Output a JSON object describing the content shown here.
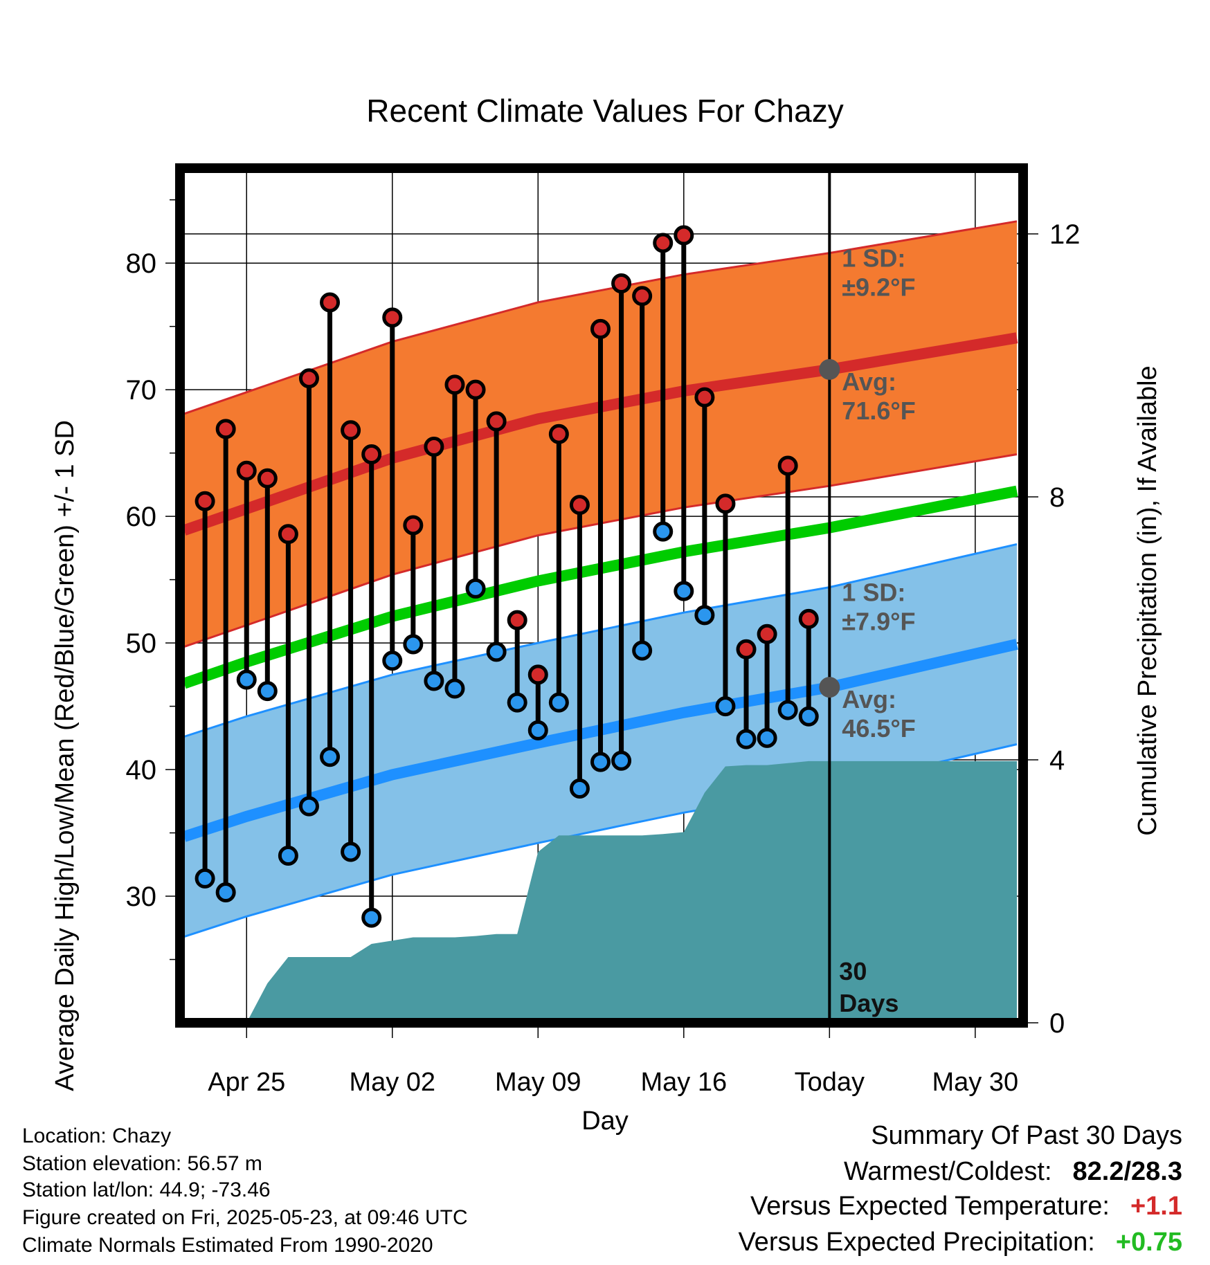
{
  "chart_data": {
    "type": "range",
    "title": "Recent Climate Values For Chazy",
    "xlabel": "Day",
    "ylabel": "Average Daily High/Low/Mean (Red/Blue/Green) +/- 1 SD",
    "y2label": "Cumulative Precipitation (in), If Available",
    "xlim": [
      -3.2,
      37.3
    ],
    "ylim": [
      20,
      87.5
    ],
    "y2lim": [
      0,
      13
    ],
    "x_ticks": [
      {
        "x": 0,
        "label": "Apr 25"
      },
      {
        "x": 7,
        "label": "May 02"
      },
      {
        "x": 14,
        "label": "May 09"
      },
      {
        "x": 21,
        "label": "May 16"
      },
      {
        "x": 28,
        "label": "Today"
      },
      {
        "x": 35,
        "label": "May 30"
      }
    ],
    "y_ticks": [
      30,
      40,
      50,
      60,
      70,
      80
    ],
    "y2_ticks": [
      0,
      4,
      8,
      12
    ],
    "grid": true,
    "daily": {
      "x": [
        -2,
        -1,
        0,
        1,
        2,
        3,
        4,
        5,
        6,
        7,
        8,
        9,
        10,
        11,
        12,
        13,
        14,
        15,
        16,
        17,
        18,
        19,
        20,
        21,
        22,
        23,
        24,
        25,
        26,
        27
      ],
      "high": [
        61.2,
        66.9,
        63.6,
        63.0,
        58.6,
        70.9,
        76.9,
        66.8,
        64.9,
        75.7,
        59.3,
        65.5,
        70.4,
        70.0,
        67.5,
        51.8,
        47.5,
        66.5,
        60.9,
        74.8,
        78.4,
        77.4,
        81.6,
        82.2,
        69.4,
        61.0,
        49.5,
        50.7,
        64.0,
        51.9
      ],
      "low": [
        31.4,
        30.3,
        47.1,
        46.2,
        33.2,
        37.1,
        41.0,
        33.5,
        28.3,
        48.6,
        49.9,
        47.0,
        46.4,
        54.3,
        49.3,
        45.3,
        43.1,
        45.3,
        38.5,
        40.6,
        40.7,
        49.4,
        58.8,
        54.1,
        52.2,
        45.0,
        42.4,
        42.5,
        44.7,
        44.2
      ]
    },
    "normals": {
      "x": [
        -3,
        0,
        7,
        14,
        21,
        28,
        37
      ],
      "avg_high": [
        58.9,
        60.6,
        64.6,
        67.7,
        69.9,
        71.6,
        74.1
      ],
      "avg_low": [
        34.7,
        36.3,
        39.6,
        42.1,
        44.5,
        46.5,
        49.9
      ],
      "avg_mean": [
        46.8,
        48.5,
        52.1,
        54.9,
        57.2,
        59.1,
        62.0
      ],
      "sd_high": 9.2,
      "sd_low": 7.9
    },
    "precip_cumulative": {
      "x": [
        0,
        1,
        2,
        3,
        4,
        5,
        6,
        7,
        8,
        9,
        10,
        11,
        12,
        13,
        14,
        15,
        16,
        17,
        18,
        19,
        20,
        21,
        22,
        23,
        24,
        25,
        26,
        27,
        28,
        37
      ],
      "y": [
        0,
        0.6,
        1.0,
        1.0,
        1.0,
        1.0,
        1.2,
        1.25,
        1.3,
        1.3,
        1.3,
        1.32,
        1.35,
        1.35,
        2.6,
        2.85,
        2.85,
        2.85,
        2.85,
        2.85,
        2.87,
        2.9,
        3.5,
        3.9,
        3.92,
        3.92,
        3.95,
        3.98,
        3.98,
        3.98
      ]
    },
    "today_x": 28,
    "annotations": {
      "high_sd": "1 SD:",
      "high_sd_val": "±9.2°F",
      "high_avg": "Avg:",
      "high_avg_val": "71.6°F",
      "low_sd": "1 SD:",
      "low_sd_val": "±7.9°F",
      "low_avg": "Avg:",
      "low_avg_val": "46.5°F",
      "period_num": "30",
      "period_unit": "Days"
    },
    "colors": {
      "high_band": "#f47a30",
      "high_line": "#d42a2a",
      "low_band": "#84c1e8",
      "low_line": "#1e90ff",
      "mean_line": "#00cc00",
      "precip": "#4a9aa2",
      "high_dot": "#d42a2a",
      "low_dot": "#2b96ee",
      "annotation": "#555555"
    }
  },
  "info": {
    "location": "Location: Chazy",
    "elevation": "Station elevation: 56.57 m",
    "latlon": "Station lat/lon: 44.9; -73.46",
    "created": "Figure created on Fri, 2025-05-23, at 09:46 UTC",
    "normals": "Climate Normals Estimated From 1990-2020"
  },
  "summary": {
    "title": "Summary Of Past 30 Days",
    "warmest_label": "Warmest/Coldest:",
    "warmest_value": "82.2/28.3",
    "temp_label": "Versus Expected Temperature:",
    "temp_value": "+1.1",
    "precip_label": "Versus Expected Precipitation:",
    "precip_value": "+0.75"
  }
}
